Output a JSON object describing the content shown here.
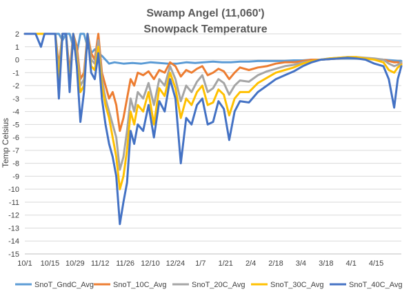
{
  "chart_data": {
    "type": "line",
    "title": "Swamp Angel (11,060')",
    "subtitle": "Snowpack Temperature",
    "xlabel": "",
    "ylabel": "Temp Celsius",
    "ylim": [
      -15,
      2
    ],
    "yticks": [
      2,
      1,
      0,
      -1,
      -2,
      -3,
      -4,
      -5,
      -6,
      -7,
      -8,
      -9,
      -10,
      -11,
      -12,
      -13,
      -14,
      -15
    ],
    "xtick_labels": [
      "10/1",
      "10/15",
      "10/29",
      "11/12",
      "11/26",
      "12/10",
      "12/24",
      "1/7",
      "1/21",
      "2/4",
      "2/18",
      "3/4",
      "3/18",
      "4/1",
      "4/15"
    ],
    "x_unit": "days from 10/1",
    "xlim": [
      0,
      210
    ],
    "grid": "horizontal",
    "legend_position": "bottom",
    "series": [
      {
        "name": "SnoT_GndC_Avg",
        "color": "#5b9bd5",
        "x": [
          0,
          3,
          6,
          9,
          11,
          13,
          15,
          17,
          19,
          21,
          23,
          25,
          27,
          29,
          31,
          33,
          35,
          37,
          39,
          41,
          43,
          45,
          47,
          50,
          55,
          60,
          65,
          70,
          75,
          80,
          85,
          90,
          95,
          100,
          105,
          110,
          115,
          120,
          125,
          130,
          135,
          140,
          145,
          150,
          155,
          160,
          165,
          170,
          175,
          180,
          185,
          190,
          195,
          200,
          205,
          208,
          210
        ],
        "values": [
          2.0,
          2.0,
          2.0,
          2.0,
          2.0,
          2.0,
          2.0,
          2.0,
          2.0,
          1.5,
          2.0,
          2.0,
          1.0,
          0.5,
          2.0,
          2.0,
          1.0,
          0.5,
          0.8,
          0.5,
          0.3,
          0.0,
          -0.3,
          -0.2,
          -0.3,
          -0.25,
          -0.3,
          -0.2,
          -0.25,
          -0.3,
          -0.3,
          -0.2,
          -0.25,
          -0.2,
          -0.15,
          -0.2,
          -0.2,
          -0.15,
          -0.15,
          -0.1,
          -0.1,
          -0.1,
          -0.1,
          -0.05,
          -0.05,
          0.0,
          0.0,
          0.05,
          0.1,
          0.1,
          0.1,
          0.05,
          0.05,
          0.0,
          -0.05,
          -0.1,
          -0.1
        ]
      },
      {
        "name": "SnoT_10C_Avg",
        "color": "#ed7d31",
        "x": [
          0,
          3,
          6,
          9,
          11,
          13,
          15,
          17,
          19,
          21,
          23,
          25,
          27,
          29,
          31,
          33,
          35,
          37,
          39,
          41,
          43,
          45,
          47,
          49,
          51,
          53,
          55,
          57,
          59,
          61,
          63,
          66,
          69,
          72,
          75,
          78,
          81,
          84,
          87,
          90,
          93,
          96,
          99,
          102,
          105,
          108,
          111,
          114,
          117,
          120,
          125,
          130,
          135,
          140,
          145,
          150,
          155,
          160,
          165,
          170,
          175,
          180,
          185,
          190,
          195,
          200,
          203,
          206,
          208,
          210
        ],
        "values": [
          2.0,
          2.0,
          2.0,
          2.0,
          2.0,
          2.0,
          2.0,
          2.0,
          -0.5,
          2.0,
          2.0,
          -1.0,
          2.0,
          1.0,
          -1.5,
          -1.0,
          2.0,
          0.5,
          0.0,
          2.0,
          -1.0,
          -2.0,
          -3.0,
          -2.5,
          -3.5,
          -5.5,
          -4.5,
          -3.0,
          -1.5,
          -2.0,
          -1.0,
          -1.2,
          -0.9,
          -1.5,
          -0.8,
          -1.0,
          -0.2,
          -0.5,
          -1.3,
          -0.8,
          -1.0,
          -0.7,
          -0.5,
          -1.2,
          -1.0,
          -0.7,
          -0.9,
          -1.5,
          -1.0,
          -0.6,
          -0.8,
          -0.6,
          -0.5,
          -0.3,
          -0.2,
          -0.2,
          -0.1,
          0.0,
          0.0,
          0.05,
          0.1,
          0.15,
          0.15,
          0.1,
          0.05,
          0.0,
          -0.1,
          -0.2,
          -0.2,
          -0.3
        ]
      },
      {
        "name": "SnoT_20C_Avg",
        "color": "#a5a5a5",
        "x": [
          0,
          3,
          6,
          9,
          11,
          13,
          15,
          17,
          19,
          21,
          23,
          25,
          27,
          29,
          31,
          33,
          35,
          37,
          39,
          41,
          43,
          45,
          47,
          49,
          51,
          53,
          55,
          57,
          59,
          61,
          63,
          66,
          69,
          72,
          75,
          78,
          81,
          84,
          87,
          90,
          93,
          96,
          99,
          102,
          105,
          108,
          111,
          114,
          117,
          120,
          125,
          130,
          135,
          140,
          145,
          150,
          155,
          160,
          165,
          170,
          175,
          180,
          185,
          190,
          195,
          200,
          203,
          206,
          208,
          210
        ],
        "values": [
          2.0,
          2.0,
          2.0,
          2.0,
          2.0,
          2.0,
          2.0,
          2.0,
          -1.0,
          2.0,
          2.0,
          -1.5,
          2.0,
          0.5,
          -2.0,
          -1.5,
          2.0,
          0.0,
          -0.3,
          1.5,
          -1.5,
          -3.0,
          -4.0,
          -5.0,
          -6.0,
          -8.5,
          -7.5,
          -5.5,
          -3.0,
          -4.0,
          -2.5,
          -3.0,
          -1.8,
          -3.5,
          -1.5,
          -2.0,
          -0.5,
          -1.5,
          -3.2,
          -2.0,
          -2.5,
          -1.7,
          -1.2,
          -2.5,
          -2.2,
          -1.5,
          -1.8,
          -2.7,
          -2.0,
          -1.6,
          -1.7,
          -1.2,
          -0.9,
          -0.7,
          -0.5,
          -0.4,
          -0.2,
          -0.1,
          0.0,
          0.1,
          0.15,
          0.2,
          0.2,
          0.15,
          0.1,
          0.0,
          -0.3,
          -0.5,
          -0.4,
          -0.2
        ]
      },
      {
        "name": "SnoT_30C_Avg",
        "color": "#ffc000",
        "x": [
          0,
          3,
          6,
          9,
          11,
          13,
          15,
          17,
          19,
          21,
          23,
          25,
          27,
          29,
          31,
          33,
          35,
          37,
          39,
          41,
          43,
          45,
          47,
          49,
          51,
          53,
          55,
          57,
          59,
          61,
          63,
          66,
          69,
          72,
          75,
          78,
          81,
          84,
          87,
          90,
          93,
          96,
          99,
          102,
          105,
          108,
          111,
          114,
          117,
          120,
          125,
          130,
          135,
          140,
          145,
          150,
          155,
          160,
          165,
          170,
          175,
          180,
          185,
          190,
          195,
          200,
          203,
          206,
          208,
          210
        ],
        "values": [
          2.0,
          2.0,
          2.0,
          2.0,
          2.0,
          2.0,
          2.0,
          2.0,
          -1.5,
          2.0,
          2.0,
          -2.0,
          2.0,
          0.0,
          -2.5,
          -2.0,
          2.0,
          -0.5,
          -0.8,
          1.0,
          -2.0,
          -3.5,
          -4.5,
          -6.0,
          -7.5,
          -10.0,
          -9.0,
          -7.0,
          -4.0,
          -5.0,
          -3.5,
          -4.0,
          -2.5,
          -5.0,
          -2.2,
          -2.8,
          -1.0,
          -2.2,
          -4.5,
          -3.0,
          -3.5,
          -2.5,
          -2.0,
          -3.5,
          -3.3,
          -2.3,
          -2.7,
          -4.3,
          -3.0,
          -2.5,
          -2.5,
          -1.8,
          -1.4,
          -1.0,
          -0.8,
          -0.6,
          -0.3,
          -0.1,
          0.0,
          0.1,
          0.15,
          0.2,
          0.2,
          0.1,
          0.0,
          -0.2,
          -0.8,
          -1.0,
          -0.6,
          -0.4
        ]
      },
      {
        "name": "SnoT_40C_Avg",
        "color": "#4472c4",
        "x": [
          0,
          3,
          6,
          9,
          11,
          13,
          15,
          17,
          19,
          21,
          23,
          25,
          27,
          29,
          31,
          33,
          35,
          37,
          39,
          41,
          43,
          45,
          47,
          49,
          51,
          53,
          55,
          57,
          59,
          61,
          63,
          66,
          69,
          72,
          75,
          78,
          81,
          84,
          87,
          90,
          93,
          96,
          99,
          102,
          105,
          108,
          111,
          114,
          117,
          120,
          125,
          130,
          135,
          140,
          145,
          150,
          155,
          160,
          165,
          170,
          175,
          180,
          185,
          190,
          195,
          200,
          203,
          206,
          208,
          210
        ],
        "values": [
          2.0,
          2.0,
          2.0,
          1.0,
          2.0,
          2.0,
          2.0,
          2.0,
          -3.0,
          2.0,
          2.0,
          -2.5,
          2.0,
          -0.5,
          -4.8,
          -2.5,
          2.0,
          -1.0,
          -1.5,
          0.5,
          -3.0,
          -5.0,
          -6.5,
          -7.5,
          -9.0,
          -12.7,
          -11.0,
          -9.5,
          -5.5,
          -6.5,
          -5.0,
          -5.5,
          -3.5,
          -6.0,
          -3.2,
          -4.0,
          -1.5,
          -3.0,
          -8.0,
          -4.5,
          -5.0,
          -3.5,
          -3.0,
          -5.0,
          -4.8,
          -3.2,
          -3.8,
          -6.2,
          -4.0,
          -3.2,
          -3.3,
          -2.5,
          -2.0,
          -1.5,
          -1.2,
          -0.9,
          -0.5,
          -0.2,
          0.0,
          0.05,
          0.1,
          0.15,
          0.1,
          0.0,
          -0.3,
          -0.5,
          -1.5,
          -3.7,
          -1.5,
          -0.5
        ]
      }
    ]
  }
}
